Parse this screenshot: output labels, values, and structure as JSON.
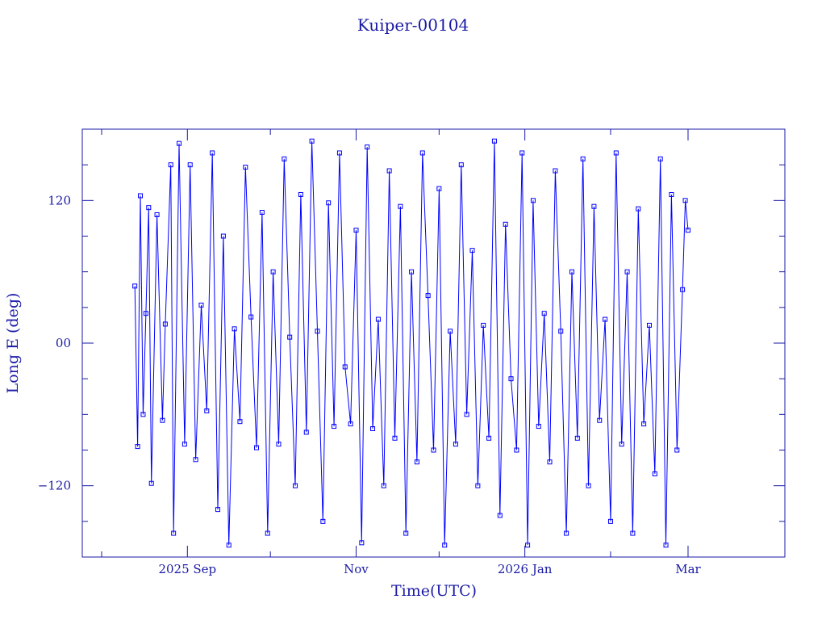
{
  "chart_data": {
    "type": "line",
    "title": "Kuiper-00104",
    "xlabel": "Time(UTC)",
    "ylabel": "Long E (deg)",
    "x_range": [
      "2025-07-25",
      "2026-04-05"
    ],
    "data_x_range": [
      "2025-08-13",
      "2026-03-01"
    ],
    "ylim": [
      -180,
      180
    ],
    "x_tick_labels": [
      {
        "date": "2025-09-01",
        "label": "2025 Sep"
      },
      {
        "date": "2025-11-01",
        "label": "Nov"
      },
      {
        "date": "2026-01-01",
        "label": "2026 Jan"
      },
      {
        "date": "2026-03-01",
        "label": "Mar"
      }
    ],
    "y_ticks": [
      {
        "value": 120,
        "label": "120"
      },
      {
        "value": 0,
        "label": "00"
      },
      {
        "value": -120,
        "label": "−120"
      }
    ],
    "series": [
      {
        "marker": "square",
        "color": "#0000ff",
        "points": [
          {
            "x": "2025-08-13",
            "y": 48
          },
          {
            "x": "2025-08-14",
            "y": -87
          },
          {
            "x": "2025-08-15",
            "y": 124
          },
          {
            "x": "2025-08-16",
            "y": -60
          },
          {
            "x": "2025-08-17",
            "y": 25
          },
          {
            "x": "2025-08-18",
            "y": 114
          },
          {
            "x": "2025-08-19",
            "y": -118
          },
          {
            "x": "2025-08-21",
            "y": 108
          },
          {
            "x": "2025-08-23",
            "y": -65
          },
          {
            "x": "2025-08-24",
            "y": 16
          },
          {
            "x": "2025-08-26",
            "y": 150
          },
          {
            "x": "2025-08-27",
            "y": -160
          },
          {
            "x": "2025-08-29",
            "y": 168
          },
          {
            "x": "2025-08-31",
            "y": -85
          },
          {
            "x": "2025-09-02",
            "y": 150
          },
          {
            "x": "2025-09-04",
            "y": -98
          },
          {
            "x": "2025-09-06",
            "y": 32
          },
          {
            "x": "2025-09-08",
            "y": -57
          },
          {
            "x": "2025-09-10",
            "y": 160
          },
          {
            "x": "2025-09-12",
            "y": -140
          },
          {
            "x": "2025-09-14",
            "y": 90
          },
          {
            "x": "2025-09-16",
            "y": -170
          },
          {
            "x": "2025-09-18",
            "y": 12
          },
          {
            "x": "2025-09-20",
            "y": -66
          },
          {
            "x": "2025-09-22",
            "y": 148
          },
          {
            "x": "2025-09-24",
            "y": 22
          },
          {
            "x": "2025-09-26",
            "y": -88
          },
          {
            "x": "2025-09-28",
            "y": 110
          },
          {
            "x": "2025-09-30",
            "y": -160
          },
          {
            "x": "2025-10-02",
            "y": 60
          },
          {
            "x": "2025-10-04",
            "y": -85
          },
          {
            "x": "2025-10-06",
            "y": 155
          },
          {
            "x": "2025-10-08",
            "y": 5
          },
          {
            "x": "2025-10-10",
            "y": -120
          },
          {
            "x": "2025-10-12",
            "y": 125
          },
          {
            "x": "2025-10-14",
            "y": -75
          },
          {
            "x": "2025-10-16",
            "y": 170
          },
          {
            "x": "2025-10-18",
            "y": 10
          },
          {
            "x": "2025-10-20",
            "y": -150
          },
          {
            "x": "2025-10-22",
            "y": 118
          },
          {
            "x": "2025-10-24",
            "y": -70
          },
          {
            "x": "2025-10-26",
            "y": 160
          },
          {
            "x": "2025-10-28",
            "y": -20
          },
          {
            "x": "2025-10-30",
            "y": -68
          },
          {
            "x": "2025-11-01",
            "y": 95
          },
          {
            "x": "2025-11-03",
            "y": -168
          },
          {
            "x": "2025-11-05",
            "y": 165
          },
          {
            "x": "2025-11-07",
            "y": -72
          },
          {
            "x": "2025-11-09",
            "y": 20
          },
          {
            "x": "2025-11-11",
            "y": -120
          },
          {
            "x": "2025-11-13",
            "y": 145
          },
          {
            "x": "2025-11-15",
            "y": -80
          },
          {
            "x": "2025-11-17",
            "y": 115
          },
          {
            "x": "2025-11-19",
            "y": -160
          },
          {
            "x": "2025-11-21",
            "y": 60
          },
          {
            "x": "2025-11-23",
            "y": -100
          },
          {
            "x": "2025-11-25",
            "y": 160
          },
          {
            "x": "2025-11-27",
            "y": 40
          },
          {
            "x": "2025-11-29",
            "y": -90
          },
          {
            "x": "2025-12-01",
            "y": 130
          },
          {
            "x": "2025-12-03",
            "y": -170
          },
          {
            "x": "2025-12-05",
            "y": 10
          },
          {
            "x": "2025-12-07",
            "y": -85
          },
          {
            "x": "2025-12-09",
            "y": 150
          },
          {
            "x": "2025-12-11",
            "y": -60
          },
          {
            "x": "2025-12-13",
            "y": 78
          },
          {
            "x": "2025-12-15",
            "y": -120
          },
          {
            "x": "2025-12-17",
            "y": 15
          },
          {
            "x": "2025-12-19",
            "y": -80
          },
          {
            "x": "2025-12-21",
            "y": 170
          },
          {
            "x": "2025-12-23",
            "y": -145
          },
          {
            "x": "2025-12-25",
            "y": 100
          },
          {
            "x": "2025-12-27",
            "y": -30
          },
          {
            "x": "2025-12-29",
            "y": -90
          },
          {
            "x": "2025-12-31",
            "y": 160
          },
          {
            "x": "2026-01-02",
            "y": -170
          },
          {
            "x": "2026-01-04",
            "y": 120
          },
          {
            "x": "2026-01-06",
            "y": -70
          },
          {
            "x": "2026-01-08",
            "y": 25
          },
          {
            "x": "2026-01-10",
            "y": -100
          },
          {
            "x": "2026-01-12",
            "y": 145
          },
          {
            "x": "2026-01-14",
            "y": 10
          },
          {
            "x": "2026-01-16",
            "y": -160
          },
          {
            "x": "2026-01-18",
            "y": 60
          },
          {
            "x": "2026-01-20",
            "y": -80
          },
          {
            "x": "2026-01-22",
            "y": 155
          },
          {
            "x": "2026-01-24",
            "y": -120
          },
          {
            "x": "2026-01-26",
            "y": 115
          },
          {
            "x": "2026-01-28",
            "y": -65
          },
          {
            "x": "2026-01-30",
            "y": 20
          },
          {
            "x": "2026-02-01",
            "y": -150
          },
          {
            "x": "2026-02-03",
            "y": 160
          },
          {
            "x": "2026-02-05",
            "y": -85
          },
          {
            "x": "2026-02-07",
            "y": 60
          },
          {
            "x": "2026-02-09",
            "y": -160
          },
          {
            "x": "2026-02-11",
            "y": 113
          },
          {
            "x": "2026-02-13",
            "y": -68
          },
          {
            "x": "2026-02-15",
            "y": 15
          },
          {
            "x": "2026-02-17",
            "y": -110
          },
          {
            "x": "2026-02-19",
            "y": 155
          },
          {
            "x": "2026-02-21",
            "y": -170
          },
          {
            "x": "2026-02-23",
            "y": 125
          },
          {
            "x": "2026-02-25",
            "y": -90
          },
          {
            "x": "2026-02-27",
            "y": 45
          },
          {
            "x": "2026-02-28",
            "y": 120
          },
          {
            "x": "2026-03-01",
            "y": 95
          }
        ]
      }
    ]
  }
}
